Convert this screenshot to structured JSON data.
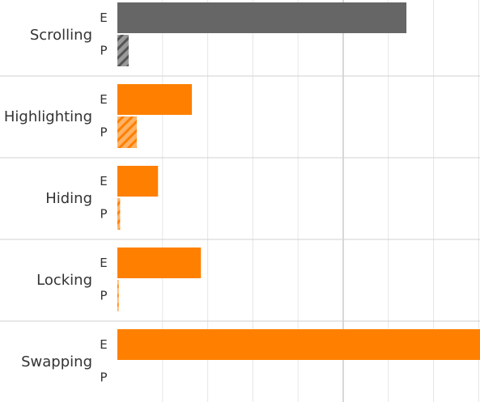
{
  "chart_data": {
    "type": "bar",
    "orientation": "horizontal",
    "categories": [
      "Scrolling",
      "Highlighting",
      "Hiding",
      "Locking",
      "Swapping"
    ],
    "series": [
      {
        "key": "E",
        "label": "E",
        "pattern": "solid",
        "values": [
          64,
          16.5,
          9,
          18.5,
          82
        ]
      },
      {
        "key": "P",
        "label": "P",
        "pattern": "hatched",
        "values": [
          2.5,
          4.3,
          0.6,
          0.3,
          0
        ]
      }
    ],
    "xlim": [
      0,
      80
    ],
    "reference_line": 50,
    "grid": true,
    "colors": {
      "Scrolling": "#666666",
      "default": "#ff8000"
    },
    "title": "",
    "xlabel": "",
    "ylabel": ""
  }
}
